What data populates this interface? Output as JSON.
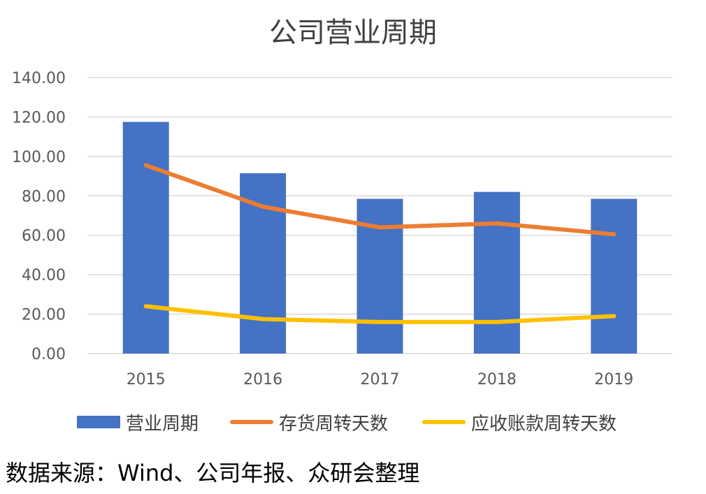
{
  "chart_data": {
    "type": "bar",
    "title": "公司营业周期",
    "categories": [
      "2015",
      "2016",
      "2017",
      "2018",
      "2019"
    ],
    "ylim": [
      0,
      140
    ],
    "yticks": [
      "0.00",
      "20.00",
      "40.00",
      "60.00",
      "80.00",
      "100.00",
      "120.00",
      "140.00"
    ],
    "grid": true,
    "legend_position": "bottom",
    "series": [
      {
        "name": "营业周期",
        "type": "bar",
        "color": "#4472C4",
        "values": [
          117.5,
          91.5,
          78.5,
          82.0,
          78.5
        ]
      },
      {
        "name": "存货周转天数",
        "type": "line",
        "color": "#ED7D31",
        "values": [
          95.5,
          74.5,
          64.0,
          66.0,
          60.5
        ]
      },
      {
        "name": "应收账款周转天数",
        "type": "line",
        "color": "#FFC000",
        "values": [
          24.0,
          17.5,
          16.0,
          16.0,
          19.0
        ]
      }
    ]
  },
  "source_note": "数据来源：Wind、公司年报、众研会整理"
}
